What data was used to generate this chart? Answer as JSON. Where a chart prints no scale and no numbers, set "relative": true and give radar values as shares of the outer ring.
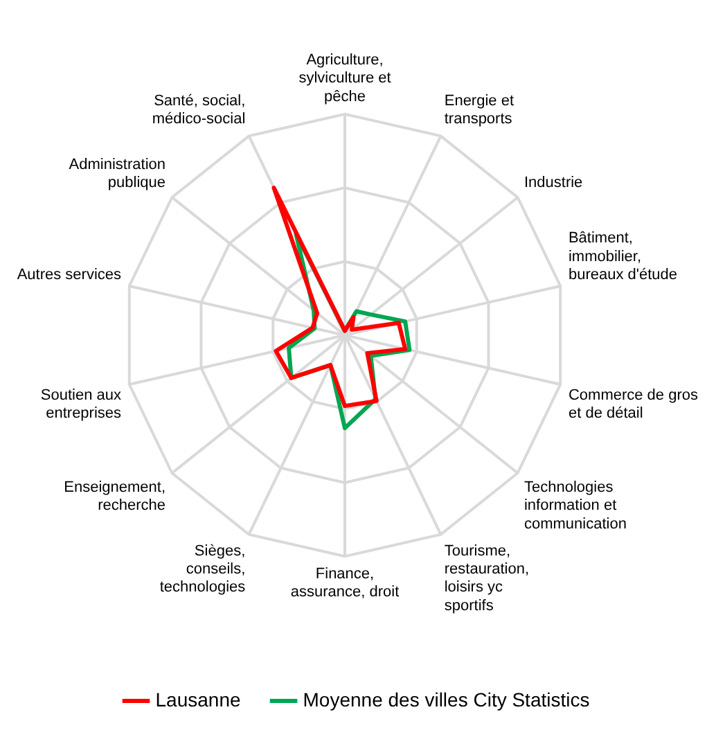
{
  "chart_data": {
    "type": "radar",
    "relative": true,
    "grid": true,
    "legend": "bottom",
    "marker": "none",
    "categories": [
      "Agriculture, sylviculture et pêche",
      "Energie et transports",
      "Industrie",
      "Bâtiment, immobilier, bureaux d'étude",
      "Commerce de gros et de détail",
      "Technologies information et communication",
      "Tourisme, restauration, loisirs yc sportifs",
      "Finance, assurance, droit",
      "Sièges, conseils, technologies",
      "Enseignement, recherche",
      "Soutien aux entreprises",
      "Autres services",
      "Administration publique",
      "Santé, social, médico-social"
    ],
    "series": [
      {
        "name": "Lausanne",
        "color": "#ff0000",
        "values": [
          0.02,
          0.09,
          0.04,
          0.25,
          0.28,
          0.13,
          0.33,
          0.32,
          0.15,
          0.31,
          0.32,
          0.15,
          0.16,
          0.74
        ]
      },
      {
        "name": "Moyenne des villes City Statistics",
        "color": "#00a651",
        "values": [
          0.02,
          0.12,
          0.15,
          0.28,
          0.3,
          0.15,
          0.32,
          0.42,
          0.15,
          0.31,
          0.26,
          0.14,
          0.18,
          0.51
        ]
      }
    ]
  }
}
